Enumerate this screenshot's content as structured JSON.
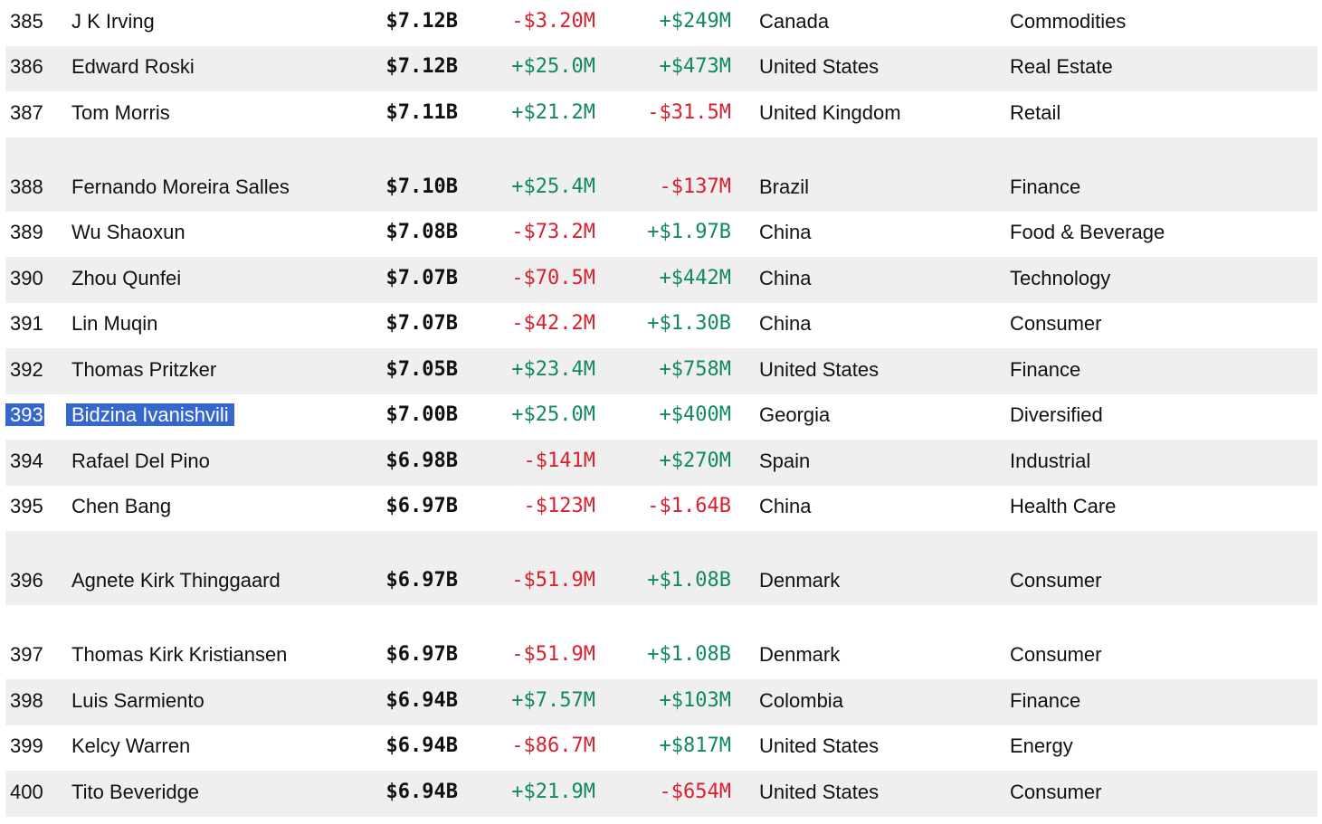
{
  "rows": [
    {
      "rank": "385",
      "name": "J K Irving",
      "worth": "$7.12B",
      "day": "-$3.20M",
      "day_dir": "neg",
      "ytd": "+$249M",
      "ytd_dir": "pos",
      "country": "Canada",
      "industry": "Commodities",
      "shaded": false,
      "double": false
    },
    {
      "rank": "386",
      "name": "Edward Roski",
      "worth": "$7.12B",
      "day": "+$25.0M",
      "day_dir": "pos",
      "ytd": "+$473M",
      "ytd_dir": "pos",
      "country": "United States",
      "industry": "Real Estate",
      "shaded": true,
      "double": false
    },
    {
      "rank": "387",
      "name": "Tom Morris",
      "worth": "$7.11B",
      "day": "+$21.2M",
      "day_dir": "pos",
      "ytd": "-$31.5M",
      "ytd_dir": "neg",
      "country": "United Kingdom",
      "industry": "Retail",
      "shaded": false,
      "double": false
    },
    {
      "rank": "388",
      "name": "Fernando Moreira Salles",
      "worth": "$7.10B",
      "day": "+$25.4M",
      "day_dir": "pos",
      "ytd": "-$137M",
      "ytd_dir": "neg",
      "country": "Brazil",
      "industry": "Finance",
      "shaded": true,
      "double": true
    },
    {
      "rank": "389",
      "name": "Wu Shaoxun",
      "worth": "$7.08B",
      "day": "-$73.2M",
      "day_dir": "neg",
      "ytd": "+$1.97B",
      "ytd_dir": "pos",
      "country": "China",
      "industry": "Food & Beverage",
      "shaded": false,
      "double": false
    },
    {
      "rank": "390",
      "name": "Zhou Qunfei",
      "worth": "$7.07B",
      "day": "-$70.5M",
      "day_dir": "neg",
      "ytd": "+$442M",
      "ytd_dir": "pos",
      "country": "China",
      "industry": "Technology",
      "shaded": true,
      "double": false
    },
    {
      "rank": "391",
      "name": "Lin Muqin",
      "worth": "$7.07B",
      "day": "-$42.2M",
      "day_dir": "neg",
      "ytd": "+$1.30B",
      "ytd_dir": "pos",
      "country": "China",
      "industry": "Consumer",
      "shaded": false,
      "double": false
    },
    {
      "rank": "392",
      "name": "Thomas Pritzker",
      "worth": "$7.05B",
      "day": "+$23.4M",
      "day_dir": "pos",
      "ytd": "+$758M",
      "ytd_dir": "pos",
      "country": "United States",
      "industry": "Finance",
      "shaded": true,
      "double": false
    },
    {
      "rank": "393",
      "name": "Bidzina Ivanishvili",
      "worth": "$7.00B",
      "day": "+$25.0M",
      "day_dir": "pos",
      "ytd": "+$400M",
      "ytd_dir": "pos",
      "country": "Georgia",
      "industry": "Diversified",
      "shaded": false,
      "double": false,
      "selected": true
    },
    {
      "rank": "394",
      "name": "Rafael Del Pino",
      "worth": "$6.98B",
      "day": "-$141M",
      "day_dir": "neg",
      "ytd": "+$270M",
      "ytd_dir": "pos",
      "country": "Spain",
      "industry": "Industrial",
      "shaded": true,
      "double": false
    },
    {
      "rank": "395",
      "name": "Chen Bang",
      "worth": "$6.97B",
      "day": "-$123M",
      "day_dir": "neg",
      "ytd": "-$1.64B",
      "ytd_dir": "neg",
      "country": "China",
      "industry": "Health Care",
      "shaded": false,
      "double": false
    },
    {
      "rank": "396",
      "name": "Agnete Kirk Thinggaard",
      "worth": "$6.97B",
      "day": "-$51.9M",
      "day_dir": "neg",
      "ytd": "+$1.08B",
      "ytd_dir": "pos",
      "country": "Denmark",
      "industry": "Consumer",
      "shaded": true,
      "double": true
    },
    {
      "rank": "397",
      "name": "Thomas Kirk Kristiansen",
      "worth": "$6.97B",
      "day": "-$51.9M",
      "day_dir": "neg",
      "ytd": "+$1.08B",
      "ytd_dir": "pos",
      "country": "Denmark",
      "industry": "Consumer",
      "shaded": false,
      "double": true
    },
    {
      "rank": "398",
      "name": "Luis Sarmiento",
      "worth": "$6.94B",
      "day": "+$7.57M",
      "day_dir": "pos",
      "ytd": "+$103M",
      "ytd_dir": "pos",
      "country": "Colombia",
      "industry": "Finance",
      "shaded": true,
      "double": false
    },
    {
      "rank": "399",
      "name": "Kelcy Warren",
      "worth": "$6.94B",
      "day": "-$86.7M",
      "day_dir": "neg",
      "ytd": "+$817M",
      "ytd_dir": "pos",
      "country": "United States",
      "industry": "Energy",
      "shaded": false,
      "double": false
    },
    {
      "rank": "400",
      "name": "Tito Beveridge",
      "worth": "$6.94B",
      "day": "+$21.9M",
      "day_dir": "pos",
      "ytd": "-$654M",
      "ytd_dir": "neg",
      "country": "United States",
      "industry": "Consumer",
      "shaded": true,
      "double": false
    }
  ],
  "colors": {
    "positive": "#0f8a5f",
    "negative": "#d8202f",
    "row_shade": "#efefef",
    "selection": "#3567cf"
  }
}
